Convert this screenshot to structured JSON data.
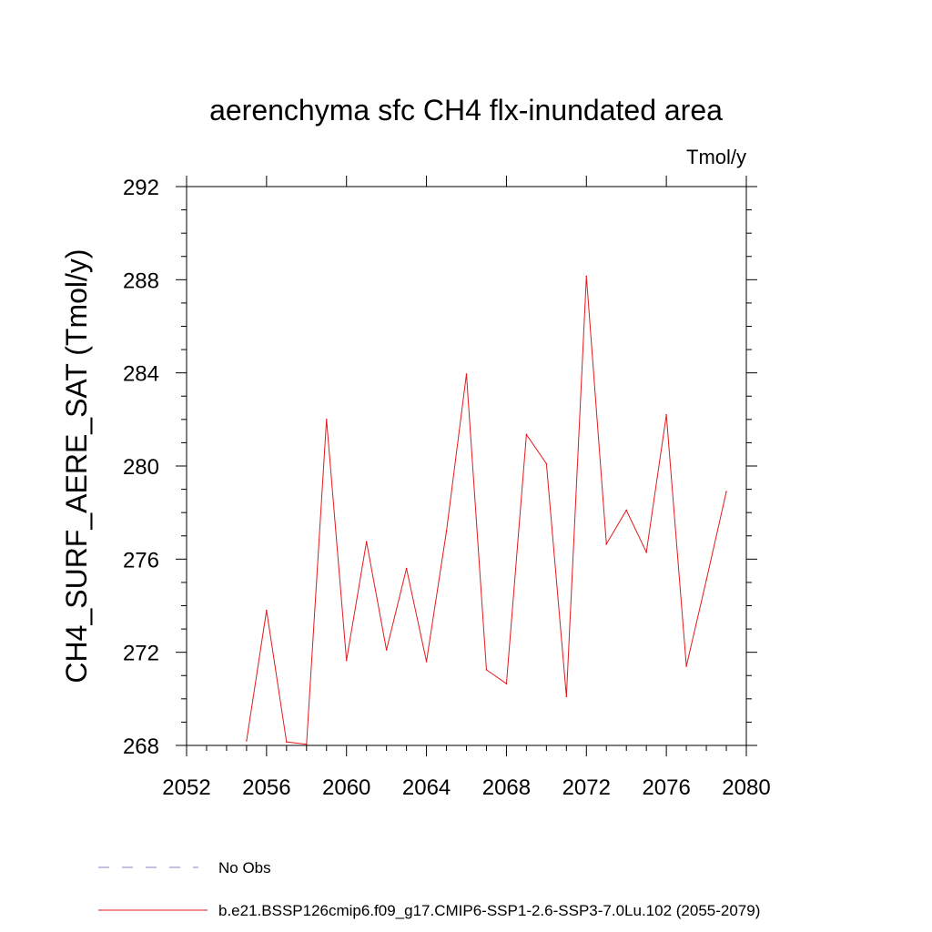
{
  "chart_data": {
    "type": "line",
    "title": "aerenchyma sfc CH4 flx-inundated area",
    "units_label": "Tmol/y",
    "ylabel": "CH4_SURF_AERE_SAT  (Tmol/y)",
    "xlabel": "",
    "xlim": [
      2052,
      2080
    ],
    "ylim": [
      268,
      292
    ],
    "x_ticks": [
      2052,
      2056,
      2060,
      2064,
      2068,
      2072,
      2076,
      2080
    ],
    "y_ticks": [
      268,
      272,
      276,
      280,
      284,
      288,
      292
    ],
    "x_tick_labels": [
      "2052",
      "2056",
      "2060",
      "2064",
      "2068",
      "2072",
      "2076",
      "2080"
    ],
    "y_tick_labels": [
      "268",
      "272",
      "276",
      "280",
      "284",
      "288",
      "292"
    ],
    "grid": false,
    "legend_position": "bottom-left",
    "series": [
      {
        "name": "b.e21.BSSP126cmip6.f09_g17.CMIP6-SSP1-2.6-SSP3-7.0Lu.102 (2055-2079)",
        "color": "#e31a1c",
        "x": [
          2055,
          2056,
          2057,
          2058,
          2059,
          2060,
          2061,
          2062,
          2063,
          2064,
          2065,
          2066,
          2067,
          2068,
          2069,
          2070,
          2071,
          2072,
          2073,
          2074,
          2075,
          2076,
          2077,
          2078,
          2079
        ],
        "values": [
          268.2,
          273.8,
          268.15,
          268.05,
          282.0,
          271.65,
          276.75,
          272.1,
          275.6,
          271.6,
          277.2,
          283.95,
          271.25,
          270.65,
          281.35,
          280.1,
          270.1,
          288.15,
          276.65,
          278.1,
          276.3,
          282.2,
          271.4,
          275.1,
          278.9
        ]
      }
    ],
    "legend": [
      {
        "label": "No Obs",
        "style": "dashed",
        "color": "#8a7fc0"
      },
      {
        "label": "b.e21.BSSP126cmip6.f09_g17.CMIP6-SSP1-2.6-SSP3-7.0Lu.102 (2055-2079)",
        "style": "solid",
        "color": "#e31a1c"
      }
    ]
  }
}
